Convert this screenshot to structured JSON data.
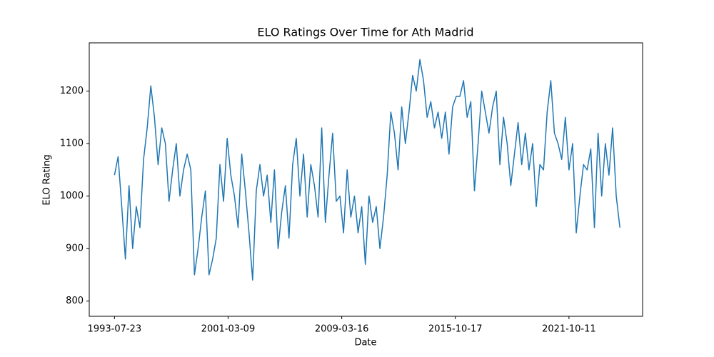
{
  "chart_data": {
    "type": "line",
    "title": "ELO Ratings Over Time for Ath Madrid",
    "x_label": "Date",
    "y_label": "ELO Rating",
    "x": [
      0,
      16,
      32,
      48,
      64,
      80,
      96,
      112,
      128,
      144,
      160,
      176,
      192,
      208,
      224,
      240,
      256,
      272,
      288,
      304,
      320,
      336,
      352,
      368,
      384,
      400,
      416,
      432,
      448,
      464,
      480,
      496,
      512,
      528,
      544,
      560,
      576,
      592,
      608,
      624,
      640,
      656,
      672,
      688,
      704,
      720,
      736,
      752,
      768,
      784,
      800,
      816,
      832,
      848,
      864,
      880,
      896,
      912,
      928,
      944,
      960,
      976,
      992,
      1008,
      1024,
      1040,
      1056,
      1072,
      1088,
      1104,
      1120,
      1136,
      1152,
      1168,
      1184,
      1200,
      1216,
      1232,
      1248,
      1264,
      1280,
      1296,
      1312,
      1328,
      1344,
      1360,
      1376,
      1392,
      1408,
      1424,
      1440,
      1456,
      1472,
      1488,
      1504,
      1520,
      1536,
      1552,
      1568,
      1584,
      1600,
      1616,
      1632,
      1648,
      1664,
      1680,
      1696,
      1712,
      1728,
      1744,
      1760,
      1776,
      1792,
      1808,
      1824,
      1840,
      1856,
      1872,
      1888,
      1904,
      1920,
      1936,
      1952,
      1968,
      1984,
      2000,
      2016,
      2032,
      2048,
      2064,
      2080,
      2096,
      2112,
      2128,
      2144,
      2160,
      2176,
      2192,
      2208,
      2224
    ],
    "series": [
      {
        "name": "ELO Rating",
        "color": "#1f77b4",
        "values": [
          1040,
          1075,
          980,
          880,
          1020,
          900,
          980,
          940,
          1070,
          1130,
          1210,
          1150,
          1060,
          1130,
          1100,
          990,
          1050,
          1100,
          1000,
          1050,
          1080,
          1050,
          850,
          900,
          960,
          1010,
          850,
          880,
          920,
          1060,
          990,
          1110,
          1040,
          1000,
          940,
          1080,
          1010,
          930,
          840,
          1010,
          1060,
          1000,
          1040,
          950,
          1050,
          900,
          970,
          1020,
          920,
          1060,
          1110,
          1000,
          1080,
          960,
          1060,
          1020,
          960,
          1130,
          950,
          1040,
          1120,
          990,
          1000,
          930,
          1050,
          960,
          1000,
          930,
          980,
          870,
          1000,
          950,
          980,
          900,
          960,
          1040,
          1160,
          1120,
          1050,
          1170,
          1100,
          1160,
          1230,
          1200,
          1260,
          1220,
          1150,
          1180,
          1130,
          1160,
          1110,
          1160,
          1080,
          1170,
          1190,
          1190,
          1220,
          1150,
          1180,
          1010,
          1100,
          1200,
          1160,
          1120,
          1170,
          1200,
          1060,
          1150,
          1100,
          1020,
          1080,
          1140,
          1060,
          1120,
          1050,
          1100,
          980,
          1060,
          1050,
          1160,
          1220,
          1120,
          1100,
          1070,
          1150,
          1050,
          1100,
          930,
          1000,
          1060,
          1050,
          1090,
          940,
          1120,
          1000,
          1100,
          1040,
          1130,
          1000,
          940
        ]
      }
    ],
    "xlim": [
      -111,
      2324
    ],
    "xticks": [
      {
        "value": 0,
        "label": "1993-07-23"
      },
      {
        "value": 500,
        "label": "2001-03-09"
      },
      {
        "value": 1000,
        "label": "2009-03-16"
      },
      {
        "value": 1500,
        "label": "2015-10-17"
      },
      {
        "value": 2000,
        "label": "2021-10-11"
      }
    ],
    "ylim": [
      771,
      1292
    ],
    "yticks": [
      800,
      900,
      1000,
      1100,
      1200
    ],
    "grid": false
  }
}
